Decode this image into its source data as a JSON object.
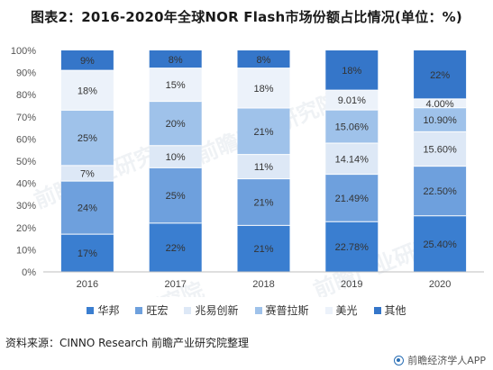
{
  "title": "图表2：2016-2020年全球NOR Flash市场份额占比情况(单位：%)",
  "watermark": "前瞻产业研究院",
  "source": "资料来源：CINNO Research 前瞻产业研究院整理",
  "brand": "前瞻经济学人APP",
  "colors": {
    "华邦": "#3a7ed0",
    "旺宏": "#6ea0dd",
    "兆易创新": "#dde8f6",
    "赛普拉斯": "#9fc2ea",
    "美光": "#ecf2fa",
    "其他": "#3576c9"
  },
  "chart_data": {
    "type": "bar",
    "stacked": true,
    "categories": [
      "2016",
      "2017",
      "2018",
      "2019",
      "2020"
    ],
    "series": [
      {
        "name": "华邦",
        "values": [
          17,
          22,
          21,
          22.78,
          25.4
        ],
        "labels": [
          "17%",
          "22%",
          "21%",
          "22.78%",
          "25.40%"
        ]
      },
      {
        "name": "旺宏",
        "values": [
          24,
          25,
          21,
          21.49,
          22.5
        ],
        "labels": [
          "24%",
          "25%",
          "21%",
          "21.49%",
          "22.50%"
        ]
      },
      {
        "name": "兆易创新",
        "values": [
          7,
          10,
          11,
          14.14,
          15.6
        ],
        "labels": [
          "7%",
          "10%",
          "11%",
          "14.14%",
          "15.60%"
        ]
      },
      {
        "name": "赛普拉斯",
        "values": [
          25,
          20,
          21,
          15.06,
          10.9
        ],
        "labels": [
          "25%",
          "20%",
          "21%",
          "15.06%",
          "10.90%"
        ]
      },
      {
        "name": "美光",
        "values": [
          18,
          15,
          18,
          9.01,
          4.0
        ],
        "labels": [
          "18%",
          "15%",
          "18%",
          "9.01%",
          "4.00%"
        ]
      },
      {
        "name": "其他",
        "values": [
          9,
          8,
          8,
          18,
          22
        ],
        "labels": [
          "9%",
          "8%",
          "8%",
          "18%",
          "22%"
        ]
      }
    ],
    "y_ticks": [
      "0%",
      "10%",
      "20%",
      "30%",
      "40%",
      "50%",
      "60%",
      "70%",
      "80%",
      "90%",
      "100%"
    ],
    "ylim": [
      0,
      100
    ],
    "grid": false,
    "legend_position": "bottom"
  }
}
